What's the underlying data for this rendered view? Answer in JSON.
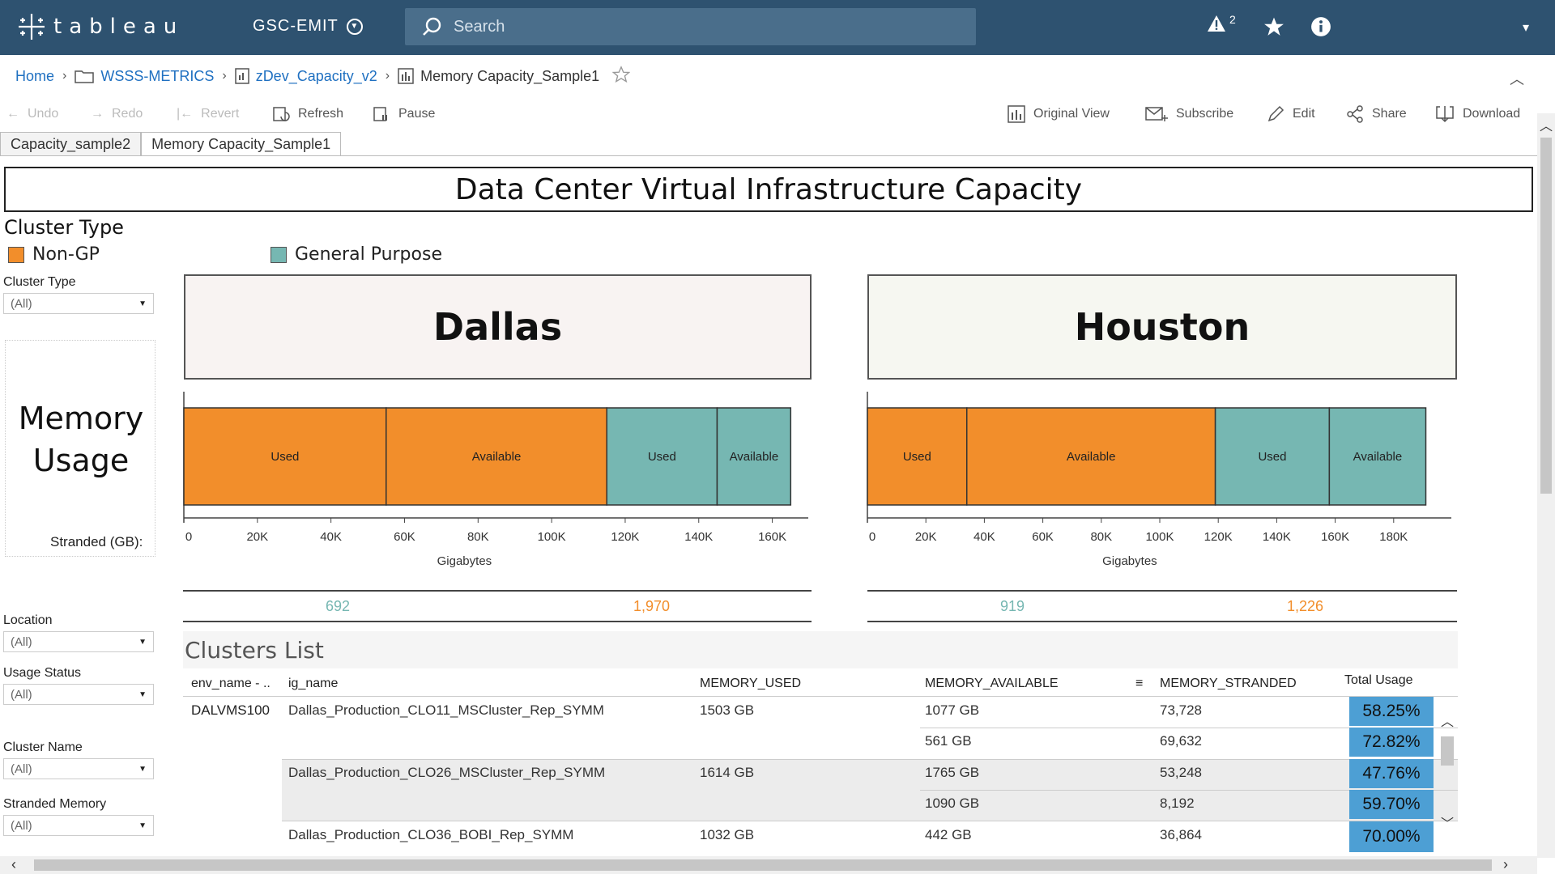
{
  "app": {
    "brand": "tableau",
    "site": "GSC-EMIT",
    "alert_count": "2"
  },
  "search": {
    "placeholder": "Search"
  },
  "breadcrumb": {
    "home": "Home",
    "project": "WSSS-METRICS",
    "workbook": "zDev_Capacity_v2",
    "view": "Memory Capacity_Sample1"
  },
  "toolbar": {
    "undo": "Undo",
    "redo": "Redo",
    "revert": "Revert",
    "refresh": "Refresh",
    "pause": "Pause",
    "original_view": "Original View",
    "subscribe": "Subscribe",
    "edit": "Edit",
    "share": "Share",
    "download": "Download"
  },
  "tabs": [
    "Capacity_sample2",
    "Memory Capacity_Sample1"
  ],
  "dashboard": {
    "title": "Data Center Virtual Infrastructure Capacity",
    "legend_title": "Cluster Type",
    "legend": [
      {
        "label": "Non-GP",
        "color": "#f28e2b"
      },
      {
        "label": "General Purpose",
        "color": "#76b7b2"
      }
    ],
    "memory_usage_title": "Memory Usage",
    "stranded_label": "Stranded (GB):",
    "filters": {
      "cluster_type": {
        "label": "Cluster Type",
        "value": "(All)"
      },
      "location": {
        "label": "Location",
        "value": "(All)"
      },
      "usage_status": {
        "label": "Usage Status",
        "value": "(All)"
      },
      "cluster_name": {
        "label": "Cluster Name",
        "value": "(All)"
      },
      "stranded_memory": {
        "label": "Stranded Memory",
        "value": "(All)"
      }
    },
    "cities": [
      {
        "name": "Dallas",
        "bg": "#f8f3f2",
        "stranded_gp": "692",
        "stranded_nongp": "1,970"
      },
      {
        "name": "Houston",
        "bg": "#f6f7f1",
        "stranded_gp": "919",
        "stranded_nongp": "1,226"
      }
    ]
  },
  "chart_data": [
    {
      "type": "bar",
      "orientation": "horizontal",
      "stacked": true,
      "title": "Dallas",
      "xlabel": "Gigabytes",
      "xlim": [
        0,
        170000
      ],
      "x_ticks": [
        "0",
        "20K",
        "40K",
        "60K",
        "80K",
        "100K",
        "120K",
        "140K",
        "160K"
      ],
      "tick_values": [
        0,
        20000,
        40000,
        60000,
        80000,
        100000,
        120000,
        140000,
        160000
      ],
      "segments": [
        {
          "label": "Used",
          "cluster_type": "Non-GP",
          "value": 55000,
          "color": "#f28e2b"
        },
        {
          "label": "Available",
          "cluster_type": "Non-GP",
          "value": 60000,
          "color": "#f28e2b"
        },
        {
          "label": "Used",
          "cluster_type": "General Purpose",
          "value": 30000,
          "color": "#76b7b2"
        },
        {
          "label": "Available",
          "cluster_type": "General Purpose",
          "value": 20000,
          "color": "#76b7b2"
        }
      ]
    },
    {
      "type": "bar",
      "orientation": "horizontal",
      "stacked": true,
      "title": "Houston",
      "xlabel": "Gigabytes",
      "xlim": [
        0,
        200000
      ],
      "x_ticks": [
        "0",
        "20K",
        "40K",
        "60K",
        "80K",
        "100K",
        "120K",
        "140K",
        "160K",
        "180K"
      ],
      "tick_values": [
        0,
        20000,
        40000,
        60000,
        80000,
        100000,
        120000,
        140000,
        160000,
        180000
      ],
      "segments": [
        {
          "label": "Used",
          "cluster_type": "Non-GP",
          "value": 34000,
          "color": "#f28e2b"
        },
        {
          "label": "Available",
          "cluster_type": "Non-GP",
          "value": 85000,
          "color": "#f28e2b"
        },
        {
          "label": "Used",
          "cluster_type": "General Purpose",
          "value": 39000,
          "color": "#76b7b2"
        },
        {
          "label": "Available",
          "cluster_type": "General Purpose",
          "value": 33000,
          "color": "#76b7b2"
        }
      ]
    }
  ],
  "clusters": {
    "title": "Clusters List",
    "columns": [
      "env_name - ..",
      "ig_name",
      "MEMORY_USED",
      "MEMORY_AVAILABLE",
      "MEMORY_STRANDED",
      "Total Usage"
    ],
    "rows": [
      {
        "env": "DALVMS100",
        "ig": "Dallas_Production_CLO11_MSCluster_Rep_SYMM",
        "used": "1503 GB",
        "available": "1077 GB",
        "stranded": "73,728",
        "usage": "58.25%"
      },
      {
        "env": "",
        "ig": "",
        "used": "",
        "available": "561 GB",
        "stranded": "69,632",
        "usage": "72.82%"
      },
      {
        "env": "",
        "ig": "Dallas_Production_CLO26_MSCluster_Rep_SYMM",
        "used": "1614 GB",
        "available": "1765 GB",
        "stranded": "53,248",
        "usage": "47.76%"
      },
      {
        "env": "",
        "ig": "",
        "used": "",
        "available": "1090 GB",
        "stranded": "8,192",
        "usage": "59.70%"
      },
      {
        "env": "",
        "ig": "Dallas_Production_CLO36_BOBI_Rep_SYMM",
        "used": "1032 GB",
        "available": "442 GB",
        "stranded": "36,864",
        "usage": "70.00%"
      }
    ]
  }
}
